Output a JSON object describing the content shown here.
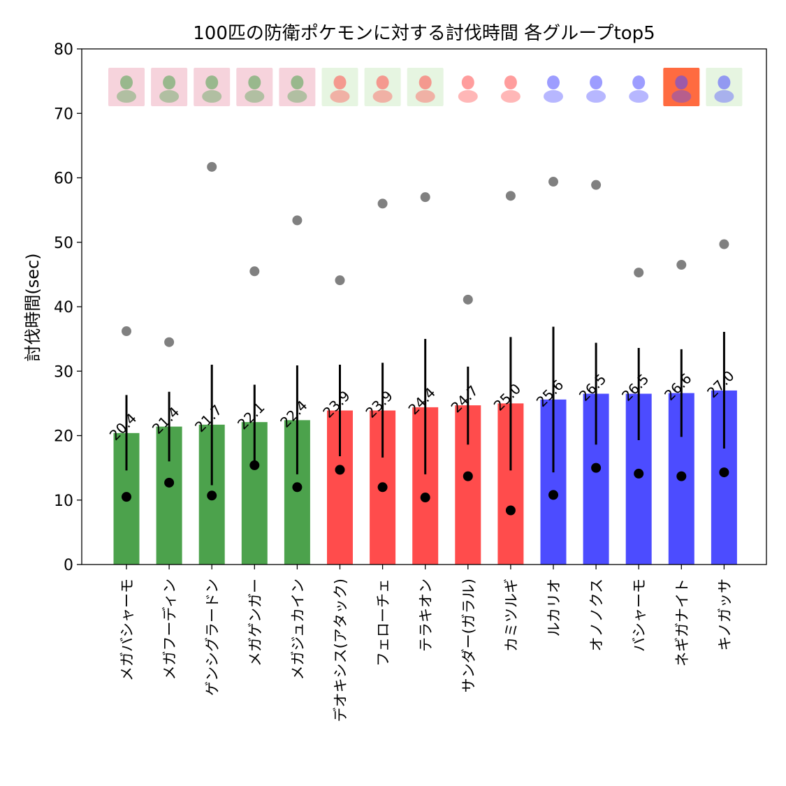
{
  "chart_data": {
    "type": "bar",
    "title": "100匹の防衛ポケモンに対する討伐時間 各グループtop5",
    "xlabel": "",
    "ylabel": "討伐時間(sec)",
    "ylim": [
      0,
      80
    ],
    "yticks": [
      0,
      10,
      20,
      30,
      40,
      50,
      60,
      70,
      80
    ],
    "grid": false,
    "categories": [
      "メガバシャーモ",
      "メガフーディン",
      "ゲンシグラードン",
      "メガゲンガー",
      "メガジュカイン",
      "デオキシス(アタック)",
      "フェローチェ",
      "テラキオン",
      "サンダー(ガラル)",
      "カミツルギ",
      "ルカリオ",
      "オノノクス",
      "バシャーモ",
      "ネギガナイト",
      "キノガッサ"
    ],
    "values": [
      20.4,
      21.4,
      21.7,
      22.1,
      22.4,
      23.9,
      23.9,
      24.4,
      24.7,
      25.0,
      25.6,
      26.5,
      26.5,
      26.6,
      27.0
    ],
    "value_labels": [
      "20.4",
      "21.4",
      "21.7",
      "22.1",
      "22.4",
      "23.9",
      "23.9",
      "24.4",
      "24.7",
      "25.0",
      "25.6",
      "26.5",
      "26.5",
      "26.6",
      "27.0"
    ],
    "error_low": [
      14.6,
      16.0,
      12.3,
      16.1,
      14.0,
      16.8,
      16.6,
      14.0,
      18.6,
      14.6,
      14.3,
      18.6,
      19.3,
      19.8,
      18.0
    ],
    "error_high": [
      26.3,
      26.8,
      31.0,
      27.9,
      30.9,
      31.0,
      31.3,
      35.0,
      30.7,
      35.3,
      36.9,
      34.4,
      33.6,
      33.4,
      36.1
    ],
    "min_values": [
      10.5,
      12.7,
      10.7,
      15.4,
      12.0,
      14.7,
      12.0,
      10.4,
      13.7,
      8.4,
      10.8,
      15.0,
      14.1,
      13.7,
      14.3
    ],
    "max_values": [
      36.2,
      34.5,
      61.7,
      45.5,
      53.4,
      44.1,
      56.0,
      57.0,
      41.1,
      57.2,
      59.4,
      58.9,
      45.3,
      46.5,
      49.7
    ],
    "bar_colors": [
      "#4ca24c",
      "#4ca24c",
      "#4ca24c",
      "#4ca24c",
      "#4ca24c",
      "#ff4c4c",
      "#ff4c4c",
      "#ff4c4c",
      "#ff4c4c",
      "#ff4c4c",
      "#4c4cff",
      "#4c4cff",
      "#4c4cff",
      "#4c4cff",
      "#4c4cff"
    ],
    "min_marker_color": "#000000",
    "max_marker_color": "#808080",
    "errorbar_color": "#000000",
    "thumbnail_backgrounds": [
      "#f6d3dc",
      "#f6d3dc",
      "#f6d3dc",
      "#f6d3dc",
      "#f6d3dc",
      "#e6f5e1",
      "#e6f5e1",
      "#e6f5e1",
      "#ffffff",
      "#ffffff",
      "#ffffff",
      "#ffffff",
      "#ffffff",
      "#ff6b40",
      "#e6f5e1"
    ]
  }
}
